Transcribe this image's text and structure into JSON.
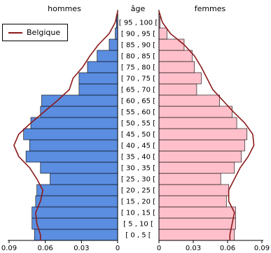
{
  "chart_data": {
    "type": "bar",
    "orientation": "horizontal",
    "layout": "population-pyramid",
    "panels": {
      "left": {
        "title": "hommes",
        "color": "#5b8de0",
        "direction": "reversed"
      },
      "center": {
        "title": "âge"
      },
      "right": {
        "title": "femmes",
        "color": "#ffc0cb"
      }
    },
    "categories": [
      "[ 0 , 5 [",
      "[ 5 , 10 [",
      "[ 10 , 15 [",
      "[ 15 , 20 [",
      "[ 20 , 25 [",
      "[ 25 , 30 [",
      "[ 30 , 35 [",
      "[ 35 , 40 [",
      "[ 40 , 45 [",
      "[ 45 , 50 [",
      "[ 50 , 55 [",
      "[ 55 , 60 [",
      "[ 60 , 65 [",
      "[ 65 , 70 [",
      "[ 70 , 75 [",
      "[ 75 , 80 [",
      "[ 80 , 85 [",
      "[ 85 , 90 [",
      "[ 90 , 95 [",
      "[ 95 , 100 ["
    ],
    "series": [
      {
        "values": [
          0.069,
          0.071,
          0.071,
          0.068,
          0.067,
          0.056,
          0.064,
          0.076,
          0.073,
          0.078,
          0.072,
          0.064,
          0.063,
          0.032,
          0.032,
          0.025,
          0.017,
          0.007,
          0.002,
          0.001
        ]
      },
      {
        "values": [
          0.066,
          0.067,
          0.067,
          0.059,
          0.061,
          0.054,
          0.066,
          0.072,
          0.075,
          0.077,
          0.068,
          0.064,
          0.053,
          0.033,
          0.037,
          0.031,
          0.029,
          0.022,
          0.007,
          0.001
        ]
      },
      {
        "name": "Belgique",
        "color": "#8b1a1a",
        "side": "left",
        "values": [
          0.064,
          0.067,
          0.068,
          0.064,
          0.062,
          0.067,
          0.073,
          0.082,
          0.086,
          0.082,
          0.072,
          0.061,
          0.05,
          0.04,
          0.037,
          0.029,
          0.023,
          0.016,
          0.007,
          0.002
        ]
      },
      {
        "name": "Belgique",
        "color": "#8b1a1a",
        "side": "right",
        "values": [
          0.062,
          0.064,
          0.066,
          0.061,
          0.061,
          0.066,
          0.071,
          0.078,
          0.083,
          0.082,
          0.075,
          0.065,
          0.056,
          0.047,
          0.042,
          0.037,
          0.031,
          0.022,
          0.01,
          0.003
        ]
      }
    ],
    "xlim": [
      0,
      0.09
    ],
    "xticks_left": [
      "0.09",
      "0.06",
      "0.03",
      "0"
    ],
    "xticks_right": [
      "0",
      "0.03",
      "0.06",
      "0.09"
    ],
    "legend": {
      "position": "top-left",
      "entries": [
        "Belgique"
      ]
    }
  }
}
